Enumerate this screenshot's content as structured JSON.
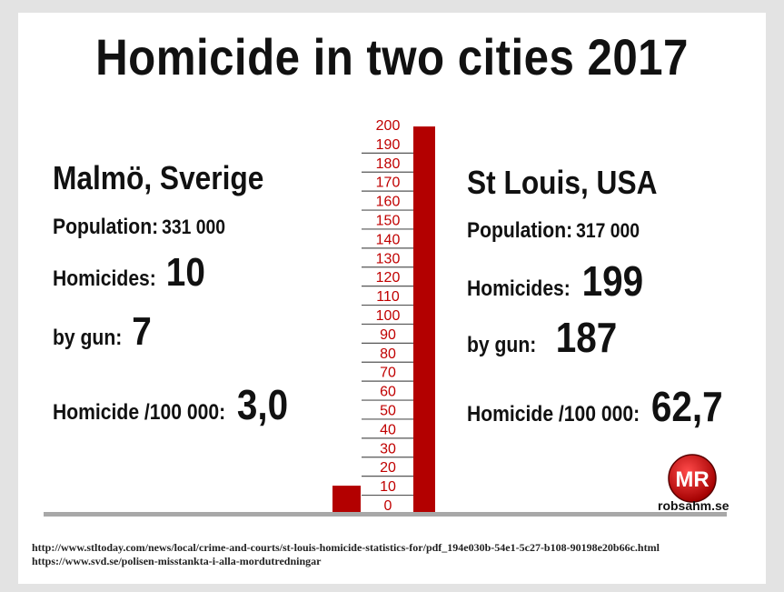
{
  "chart_data": {
    "type": "bar",
    "title": "Homicide in two cities 2017",
    "categories": [
      "Malmö, Sverige",
      "St Louis, USA"
    ],
    "values": [
      10,
      199
    ],
    "ylim": [
      0,
      200
    ],
    "y_ticks": [
      "0",
      "10",
      "20",
      "30",
      "40",
      "50",
      "60",
      "70",
      "80",
      "90",
      "100",
      "110",
      "120",
      "130",
      "140",
      "150",
      "160",
      "170",
      "180",
      "190",
      "200"
    ],
    "bar_color": "#b30000",
    "tick_color": "#c00000",
    "grid": false
  },
  "left": {
    "city": "Malmö, Sverige",
    "population_label": "Population:",
    "population_value": "331 000",
    "homicides_label": "Homicides:",
    "homicides_value": "10",
    "gun_label": "by gun:",
    "gun_value": "7",
    "rate_label": "Homicide /100 000:",
    "rate_value": "3,0"
  },
  "right": {
    "city": "St Louis, USA",
    "population_label": "Population:",
    "population_value": "317 000",
    "homicides_label": "Homicides:",
    "homicides_value": "199",
    "gun_label": "by gun:",
    "gun_value": "187",
    "rate_label": "Homicide /100 000:",
    "rate_value": "62,7"
  },
  "logo": {
    "initials": "MR",
    "site": "robsahm.se",
    "icon": "mr-logo-icon",
    "color": "#cc0000"
  },
  "sources": [
    "http://www.stltoday.com/news/local/crime-and-courts/st-louis-homicide-statistics-for/pdf_194e030b-54e1-5c27-b108-90198e20b66c.html",
    "https://www.svd.se/polisen-misstankta-i-alla-mordutredningar"
  ]
}
